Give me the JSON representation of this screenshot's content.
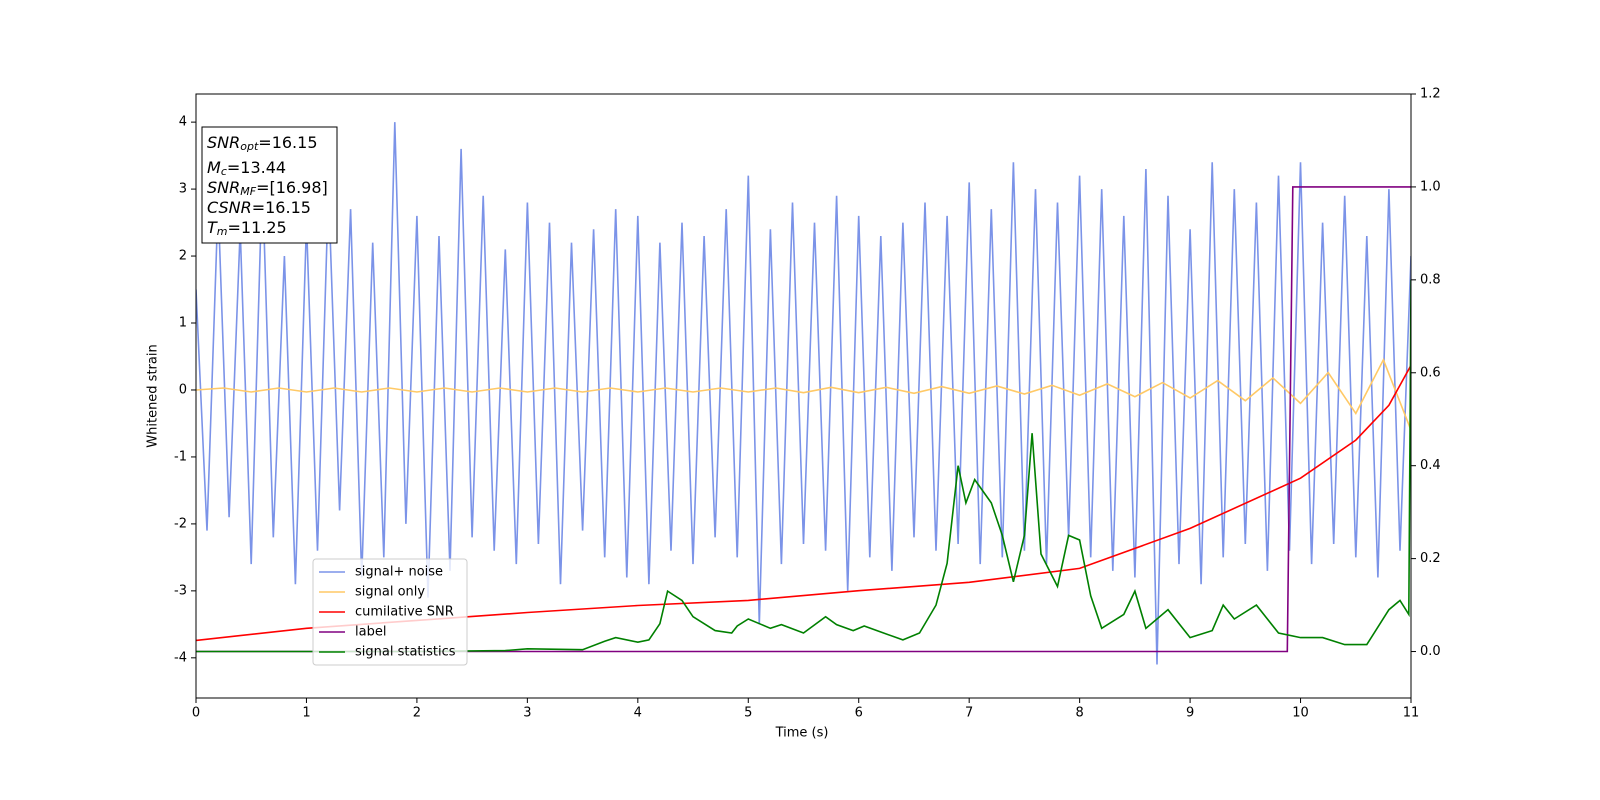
{
  "chart_data": {
    "type": "line",
    "xlabel": "Time (s)",
    "ylabel": "Whitened strain",
    "xlim": [
      0,
      11
    ],
    "xticks": [
      0,
      1,
      2,
      3,
      4,
      5,
      6,
      7,
      8,
      9,
      10,
      11
    ],
    "ylim": [
      -4.6,
      4.42
    ],
    "yticks": [
      -4,
      -3,
      -2,
      -1,
      0,
      1,
      2,
      3,
      4
    ],
    "y2lim": [
      -0.1,
      1.2
    ],
    "y2ticks": [
      {
        "value": 0,
        "label": "0.0"
      },
      0.2,
      0.4,
      0.6,
      0.8,
      {
        "value": 1,
        "label": "1.0"
      },
      1.2
    ],
    "legend": "lower left",
    "annotations": [
      {
        "symbol": "SNR",
        "sub": "opt",
        "text": "=16.15"
      },
      {
        "symbol": "M",
        "sub": "c",
        "text": "=13.44"
      },
      {
        "symbol": "SNR",
        "sub": "MF",
        "text": "=[16.98]"
      },
      {
        "symbol": "CSNR",
        "text": "=16.15"
      },
      {
        "symbol": "T",
        "sub": "m",
        "text": "=11.25"
      }
    ],
    "series": [
      {
        "name": "signal+ noise",
        "color": "#7b93e8",
        "x": [
          0,
          0.1,
          0.2,
          0.3,
          0.4,
          0.5,
          0.6,
          0.7,
          0.8,
          0.9,
          1,
          1.1,
          1.2,
          1.3,
          1.4,
          1.5,
          1.6,
          1.7,
          1.8,
          1.9,
          2,
          2.1,
          2.2,
          2.3,
          2.4,
          2.5,
          2.6,
          2.7,
          2.8,
          2.9,
          3,
          3.1,
          3.2,
          3.3,
          3.4,
          3.5,
          3.6,
          3.7,
          3.8,
          3.9,
          4,
          4.1,
          4.2,
          4.3,
          4.4,
          4.5,
          4.6,
          4.7,
          4.8,
          4.9,
          5,
          5.1,
          5.2,
          5.3,
          5.4,
          5.5,
          5.6,
          5.7,
          5.8,
          5.9,
          6,
          6.1,
          6.2,
          6.3,
          6.4,
          6.5,
          6.6,
          6.7,
          6.8,
          6.9,
          7,
          7.1,
          7.2,
          7.3,
          7.4,
          7.5,
          7.6,
          7.7,
          7.8,
          7.9,
          8,
          8.1,
          8.2,
          8.3,
          8.4,
          8.5,
          8.6,
          8.7,
          8.8,
          8.9,
          9,
          9.1,
          9.2,
          9.3,
          9.4,
          9.5,
          9.6,
          9.7,
          9.8,
          9.9,
          10,
          10.1,
          10.2,
          10.3,
          10.4,
          10.5,
          10.6,
          10.7,
          10.8,
          10.9,
          11
        ],
        "values": [
          1.5,
          -2.1,
          2.8,
          -1.9,
          2.4,
          -2.6,
          3.2,
          -2.2,
          2.0,
          -2.9,
          2.5,
          -2.4,
          3.0,
          -1.8,
          2.7,
          -2.8,
          2.2,
          -2.5,
          4.0,
          -2.0,
          2.6,
          -3.1,
          2.3,
          -2.7,
          3.6,
          -2.2,
          2.9,
          -2.4,
          2.1,
          -2.6,
          2.8,
          -2.3,
          2.5,
          -2.9,
          2.2,
          -2.1,
          2.4,
          -2.5,
          2.7,
          -2.8,
          2.6,
          -2.9,
          2.2,
          -2.4,
          2.5,
          -2.6,
          2.3,
          -2.2,
          2.7,
          -2.5,
          3.2,
          -3.5,
          2.4,
          -2.6,
          2.8,
          -2.3,
          2.5,
          -2.4,
          2.9,
          -3.0,
          2.6,
          -2.5,
          2.3,
          -2.7,
          2.5,
          -2.2,
          2.8,
          -2.4,
          2.6,
          -2.3,
          3.1,
          -2.6,
          2.7,
          -2.5,
          3.4,
          -2.4,
          3.0,
          -2.6,
          2.8,
          -2.2,
          3.2,
          -2.5,
          3.0,
          -2.7,
          2.6,
          -2.8,
          3.3,
          -4.1,
          2.9,
          -2.6,
          2.4,
          -2.9,
          3.4,
          -2.5,
          3.0,
          -2.3,
          2.8,
          -2.7,
          3.2,
          -2.4,
          3.4,
          -2.6,
          2.5,
          -2.3,
          2.9,
          -2.5,
          2.3,
          -2.8,
          3.0,
          -2.4,
          2.0
        ]
      },
      {
        "name": "signal only",
        "color": "#ffc966",
        "x": [
          0,
          0.25,
          0.5,
          0.75,
          1,
          1.25,
          1.5,
          1.75,
          2,
          2.25,
          2.5,
          2.75,
          3,
          3.25,
          3.5,
          3.75,
          4,
          4.25,
          4.5,
          4.75,
          5,
          5.25,
          5.5,
          5.75,
          6,
          6.25,
          6.5,
          6.75,
          7,
          7.25,
          7.5,
          7.75,
          8,
          8.25,
          8.5,
          8.75,
          9,
          9.25,
          9.5,
          9.75,
          10,
          10.25,
          10.5,
          10.75,
          11
        ],
        "values": [
          0,
          0.03,
          -0.03,
          0.03,
          -0.03,
          0.03,
          -0.03,
          0.03,
          -0.03,
          0.03,
          -0.03,
          0.03,
          -0.03,
          0.03,
          -0.03,
          0.03,
          -0.03,
          0.03,
          -0.03,
          0.03,
          -0.03,
          0.03,
          -0.04,
          0.04,
          -0.04,
          0.04,
          -0.05,
          0.05,
          -0.05,
          0.06,
          -0.06,
          0.07,
          -0.08,
          0.09,
          -0.1,
          0.11,
          -0.12,
          0.14,
          -0.16,
          0.18,
          -0.2,
          0.26,
          -0.35,
          0.45,
          -0.6
        ]
      },
      {
        "name": "cumilative SNR",
        "color": "#ff0000",
        "axis": "y2",
        "x": [
          0,
          1,
          2,
          3,
          4,
          5,
          6,
          7,
          8,
          9,
          10,
          10.5,
          10.8,
          11
        ],
        "values": [
          0.024,
          0.05,
          0.067,
          0.084,
          0.099,
          0.11,
          0.131,
          0.149,
          0.179,
          0.265,
          0.373,
          0.455,
          0.53,
          0.616
        ]
      },
      {
        "name": "label",
        "color": "#800080",
        "axis": "y2",
        "x": [
          0,
          9.88,
          9.93,
          11
        ],
        "values": [
          0,
          0,
          1,
          1
        ]
      },
      {
        "name": "signal statistics",
        "color": "#008000",
        "axis": "y2",
        "x": [
          0,
          1,
          2,
          2.8,
          3.0,
          3.5,
          3.7,
          3.8,
          4.0,
          4.1,
          4.2,
          4.27,
          4.4,
          4.5,
          4.7,
          4.85,
          4.9,
          5.0,
          5.2,
          5.3,
          5.5,
          5.7,
          5.8,
          5.95,
          6.05,
          6.2,
          6.4,
          6.55,
          6.7,
          6.8,
          6.9,
          6.97,
          7.05,
          7.2,
          7.3,
          7.4,
          7.5,
          7.57,
          7.65,
          7.8,
          7.9,
          8.0,
          8.1,
          8.2,
          8.4,
          8.5,
          8.6,
          8.8,
          9.0,
          9.2,
          9.3,
          9.4,
          9.6,
          9.7,
          9.8,
          10.0,
          10.2,
          10.4,
          10.6,
          10.8,
          10.9,
          10.98,
          11.0
        ],
        "values": [
          0,
          0,
          0,
          0.002,
          0.006,
          0.004,
          0.022,
          0.03,
          0.02,
          0.025,
          0.06,
          0.13,
          0.11,
          0.075,
          0.045,
          0.04,
          0.055,
          0.07,
          0.05,
          0.058,
          0.04,
          0.075,
          0.058,
          0.045,
          0.055,
          0.042,
          0.025,
          0.04,
          0.1,
          0.19,
          0.4,
          0.32,
          0.37,
          0.32,
          0.25,
          0.15,
          0.25,
          0.47,
          0.21,
          0.14,
          0.25,
          0.24,
          0.12,
          0.05,
          0.08,
          0.13,
          0.05,
          0.09,
          0.03,
          0.045,
          0.1,
          0.07,
          0.1,
          0.07,
          0.04,
          0.03,
          0.03,
          0.015,
          0.015,
          0.09,
          0.11,
          0.08,
          0.8
        ]
      }
    ]
  }
}
